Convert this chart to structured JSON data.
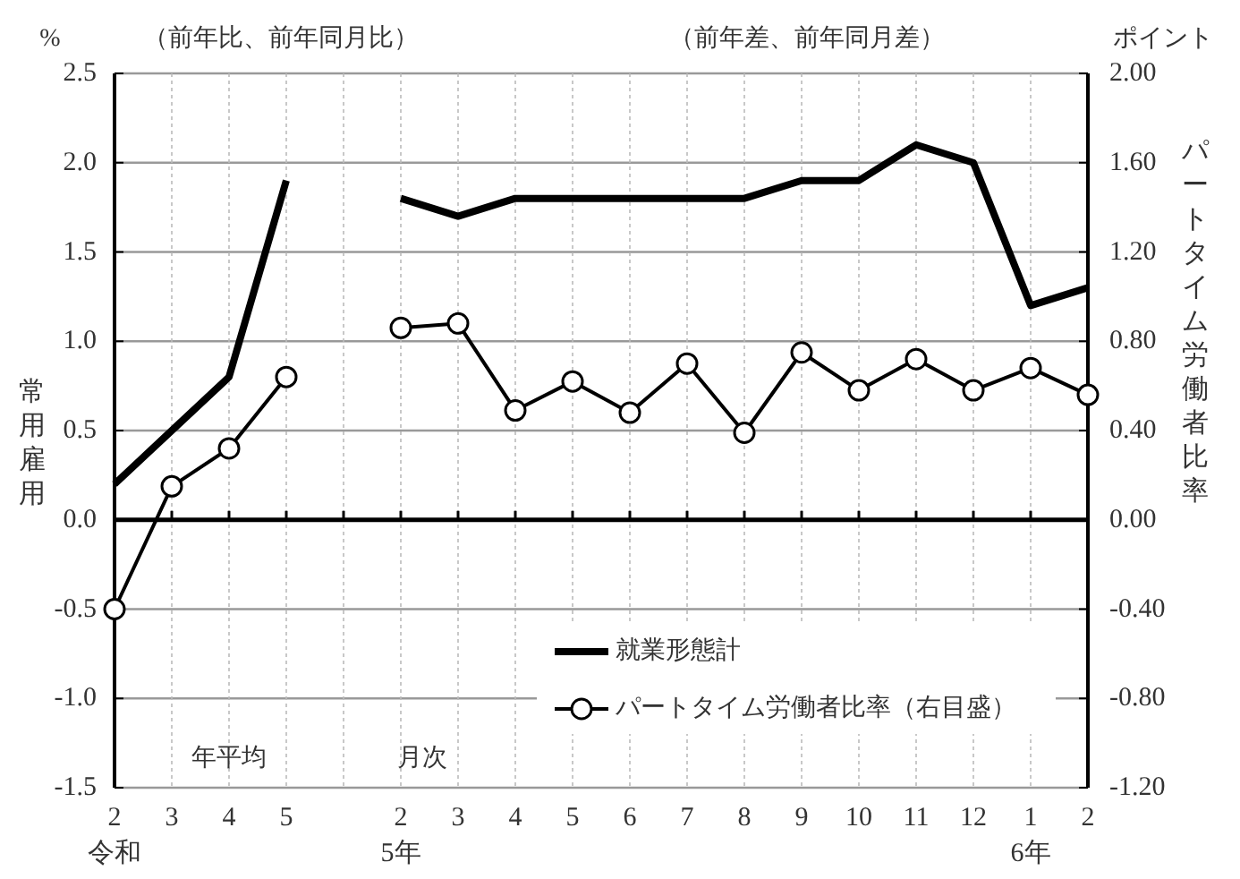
{
  "chart_data": {
    "type": "line",
    "ylabel": "常用雇用",
    "y2label": "パートタイム労働者比率",
    "annotations": [
      "%",
      "（前年比、前年同月比）",
      "（前年差、前年同月差）",
      "ポイント",
      "年平均",
      "月次"
    ],
    "categories": [
      "2\n令和",
      "3",
      "4",
      "5",
      null,
      "2\n5年",
      "3",
      "4",
      "5",
      "6",
      "7",
      "8",
      "9",
      "10",
      "11",
      "12",
      "1\n6年",
      "2"
    ],
    "series": [
      {
        "name": "就業形態計",
        "color": "#000000",
        "marker": "none",
        "values": [
          0.2,
          0.5,
          0.8,
          1.9,
          null,
          1.8,
          1.7,
          1.8,
          1.8,
          1.8,
          1.8,
          1.8,
          1.9,
          1.9,
          2.1,
          2.0,
          1.2,
          1.3
        ]
      },
      {
        "name": "パートタイム労働者比率（右目盛）",
        "color": "#000000",
        "marker": "circle",
        "axis": "y2",
        "values": [
          -0.4,
          0.15,
          0.32,
          0.64,
          null,
          0.86,
          0.88,
          0.49,
          0.62,
          0.48,
          0.7,
          0.39,
          0.75,
          0.58,
          0.72,
          0.58,
          0.68,
          0.56
        ]
      }
    ],
    "ylim": [
      -1.5,
      2.5
    ],
    "yticks": [
      {
        "value": -1.5,
        "label": "-1.5"
      },
      {
        "value": -1,
        "label": "-1.0"
      },
      {
        "value": -0.5,
        "label": "-0.5"
      },
      {
        "value": 0,
        "label": "0.0"
      },
      {
        "value": 0.5,
        "label": "0.5"
      },
      {
        "value": 1,
        "label": "1.0"
      },
      {
        "value": 1.5,
        "label": "1.5"
      },
      {
        "value": 2,
        "label": "2.0"
      },
      {
        "value": 2.5,
        "label": "2.5"
      }
    ],
    "y2lim": [
      -1.2,
      2
    ],
    "y2ticks": [
      {
        "value": -1.2,
        "label": "-1.20"
      },
      {
        "value": -0.8,
        "label": "-0.80"
      },
      {
        "value": -0.4,
        "label": "-0.40"
      },
      {
        "value": 0,
        "label": "0.00"
      },
      {
        "value": 0.4,
        "label": "0.40"
      },
      {
        "value": 0.8,
        "label": "0.80"
      },
      {
        "value": 1.2,
        "label": "1.20"
      },
      {
        "value": 1.6,
        "label": "1.60"
      },
      {
        "value": 2,
        "label": "2.00"
      }
    ],
    "grid": true,
    "legend": "bottom right",
    "line_style": "solid"
  }
}
